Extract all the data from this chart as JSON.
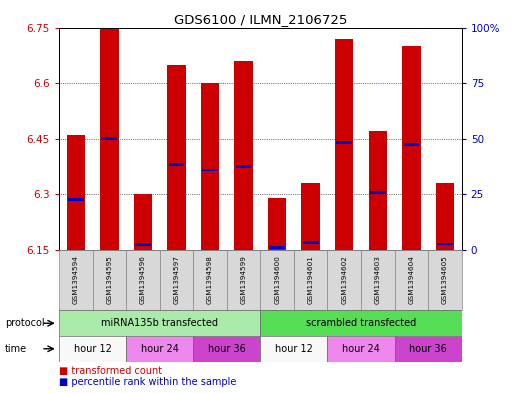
{
  "title": "GDS6100 / ILMN_2106725",
  "samples": [
    "GSM1394594",
    "GSM1394595",
    "GSM1394596",
    "GSM1394597",
    "GSM1394598",
    "GSM1394599",
    "GSM1394600",
    "GSM1394601",
    "GSM1394602",
    "GSM1394603",
    "GSM1394604",
    "GSM1394605"
  ],
  "bar_tops": [
    6.46,
    6.75,
    6.3,
    6.65,
    6.6,
    6.66,
    6.29,
    6.33,
    6.72,
    6.47,
    6.7,
    6.33
  ],
  "bar_base": 6.15,
  "percentile_values": [
    6.285,
    6.45,
    6.163,
    6.38,
    6.365,
    6.375,
    6.155,
    6.17,
    6.44,
    6.305,
    6.435,
    6.165
  ],
  "ylim_min": 6.15,
  "ylim_max": 6.75,
  "yticks_left": [
    6.15,
    6.3,
    6.45,
    6.6,
    6.75
  ],
  "yticks_right_labels": [
    "0",
    "25",
    "50",
    "75",
    "100%"
  ],
  "yticks_right_vals": [
    0,
    25,
    50,
    75,
    100
  ],
  "bar_color": "#cc0000",
  "percentile_color": "#0000cc",
  "protocol_groups": [
    {
      "label": "miRNA135b transfected",
      "start": 0,
      "end": 6,
      "color": "#aaeaaa"
    },
    {
      "label": "scrambled transfected",
      "start": 6,
      "end": 12,
      "color": "#55dd55"
    }
  ],
  "time_groups": [
    {
      "label": "hour 12",
      "start": 0,
      "end": 2,
      "color": "#f8f8f8"
    },
    {
      "label": "hour 24",
      "start": 2,
      "end": 4,
      "color": "#ee88ee"
    },
    {
      "label": "hour 36",
      "start": 4,
      "end": 6,
      "color": "#cc44cc"
    },
    {
      "label": "hour 12",
      "start": 6,
      "end": 8,
      "color": "#f8f8f8"
    },
    {
      "label": "hour 24",
      "start": 8,
      "end": 10,
      "color": "#ee88ee"
    },
    {
      "label": "hour 36",
      "start": 10,
      "end": 12,
      "color": "#cc44cc"
    }
  ],
  "background_color": "#ffffff"
}
